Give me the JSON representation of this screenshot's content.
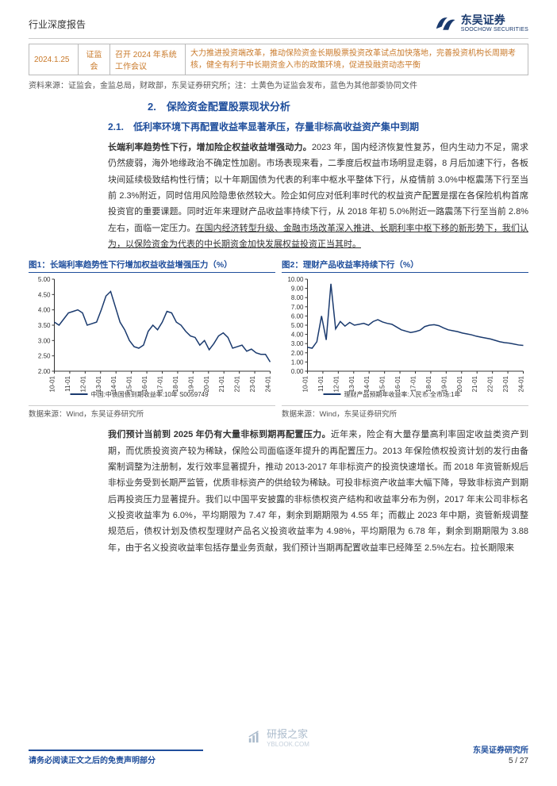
{
  "header": {
    "title": "行业深度报告"
  },
  "logo": {
    "cn": "东吴证券",
    "en": "SOOCHOW SECURITIES"
  },
  "table": {
    "date": "2024.1.25",
    "org": "证监会",
    "event": "召开 2024 年系统工作会议",
    "desc": "大力推进投资端改革，推动保险资金长期股票投资改革试点加快落地，完善投资机构长周期考核，健全有利于中长期资金入市的政策环境，促进投融资动态平衡"
  },
  "source_line": "资料来源：证监会，金监总局，财政部，东吴证券研究所；注：土黄色为证监会发布，蓝色为其他部委协同文件",
  "h2": "2.　保险资金配置股票现状分析",
  "h3": "2.1.　低利率环境下再配置收益率显著承压，存量非标高收益资产集中到期",
  "para1_lead": "长端利率趋势性下行，增加险企权益收益增强动力。",
  "para1_body": "2023 年，国内经济恢复性复苏，但内生动力不足，需求仍然疲弱，海外地缘政治不确定性加剧。市场表现来看，二季度后权益市场明显走弱，8 月后加速下行，各板块间延续极致结构性行情；以十年期国债为代表的利率中枢水平整体下行，从疫情前 3.0%中枢震荡下行至当前 2.3%附近，同时信用风险隐患依然较大。险企如何应对低利率时代的权益资产配置是摆在各保险机构首席投资官的重要课题。同时近年来理财产品收益率持续下行，从 2018 年初 5.0%附近一路震荡下行至当前 2.8%左右，面临一定压力。",
  "para1_ul": "在国内经济转型升级、金融市场改革深入推进、长期利率中枢下移的新形势下，我们认为，以保险资金为代表的中长期资金加快发展权益投资正当其时。",
  "chart1": {
    "title": "图1：长端利率趋势性下行增加权益收益增强压力（%）",
    "source": "数据来源：Wind，东吴证券研究所",
    "legend": "中国:中债国债到期收益率:10年 S0059749",
    "type": "line",
    "yticks": [
      2.0,
      2.5,
      3.0,
      3.5,
      4.0,
      4.5,
      5.0
    ],
    "ylim": [
      2.0,
      5.0
    ],
    "xlabels": [
      "10-01",
      "11-01",
      "12-01",
      "13-01",
      "14-01",
      "15-01",
      "16-01",
      "17-01",
      "18-01",
      "19-01",
      "20-01",
      "21-01",
      "22-01",
      "23-01",
      "24-01"
    ],
    "series": [
      3.6,
      3.5,
      3.7,
      3.9,
      3.95,
      4.0,
      3.9,
      3.5,
      3.55,
      3.6,
      4.0,
      4.45,
      4.6,
      4.1,
      3.6,
      3.35,
      3.0,
      2.8,
      2.75,
      2.85,
      3.3,
      3.5,
      3.35,
      3.6,
      3.95,
      3.9,
      3.6,
      3.5,
      3.3,
      3.15,
      3.1,
      2.85,
      3.0,
      2.7,
      2.9,
      3.15,
      3.25,
      3.1,
      2.75,
      2.8,
      2.85,
      2.65,
      2.72,
      2.6,
      2.55,
      2.55,
      2.3
    ],
    "line_color": "#123a6b",
    "grid_color": "#e6e6e6",
    "bg": "#ffffff"
  },
  "chart2": {
    "title": "图2：理财产品收益率持续下行（%）",
    "source": "数据来源：Wind，东吴证券研究所",
    "legend": "理财产品预期年收益率:人民币:全市场:1年",
    "type": "line",
    "yticks": [
      0.0,
      1.0,
      2.0,
      3.0,
      4.0,
      5.0,
      6.0,
      7.0,
      8.0,
      9.0,
      10.0
    ],
    "ylim": [
      0.0,
      10.0
    ],
    "xlabels": [
      "10-01",
      "11-01",
      "12-01",
      "13-01",
      "14-01",
      "15-01",
      "16-01",
      "17-01",
      "18-01",
      "19-01",
      "20-01",
      "21-01",
      "22-01",
      "23-01",
      "24-01"
    ],
    "series": [
      2.6,
      2.5,
      3.2,
      6.0,
      3.4,
      9.5,
      4.6,
      5.4,
      4.9,
      5.3,
      5.0,
      5.1,
      5.2,
      5.0,
      5.4,
      5.6,
      5.35,
      5.2,
      5.1,
      4.8,
      4.5,
      4.35,
      4.2,
      4.3,
      4.45,
      4.85,
      5.0,
      5.05,
      4.95,
      4.7,
      4.5,
      4.4,
      4.3,
      4.15,
      4.05,
      3.95,
      3.8,
      3.7,
      3.6,
      3.5,
      3.35,
      3.2,
      3.1,
      3.05,
      2.95,
      2.85,
      2.8
    ],
    "line_color": "#123a6b",
    "grid_color": "#e6e6e6",
    "bg": "#ffffff"
  },
  "para2_lead": "我们预计当前到 2025 年仍有大量非标到期再配置压力。",
  "para2_body": "近年来，险企有大量存量高利率固定收益类资产到期，而优质投资资产较为稀缺，保险公司面临逐年提升的再配置压力。2013 年保险债权投资计划的发行由备案制调整为注册制，发行效率显著提升，推动 2013-2017 年非标资产的投资快速增长。而 2018 年资管新规后非标业务受到长期严监管，优质非标资产的供给较为稀缺。可投非标资产收益率大幅下降，导致非标资产到期后再投资压力显著提升。我们以中国平安披露的非标债权资产结构和收益率分布为例，2017 年末公司非标名义投资收益率为 6.0%，平均期限为 7.47 年，剩余到期期限为 4.55 年；而截止 2023 年中期，资管新规调整规范后，债权计划及债权型理财产品名义投资收益率为 4.98%，平均期限为 6.78 年，剩余到期期限为 3.88 年，由于名义投资收益率包括存量业务贡献，我们预计当期再配置收益率已经降至 2.5%左右。拉长期限来",
  "footer": {
    "disclaimer": "请务必阅读正文之后的免责声明部分",
    "institute": "东吴证券研究所",
    "page": "5 / 27"
  },
  "watermark": {
    "name": "研报之家",
    "url": "YBLOOK.COM"
  }
}
